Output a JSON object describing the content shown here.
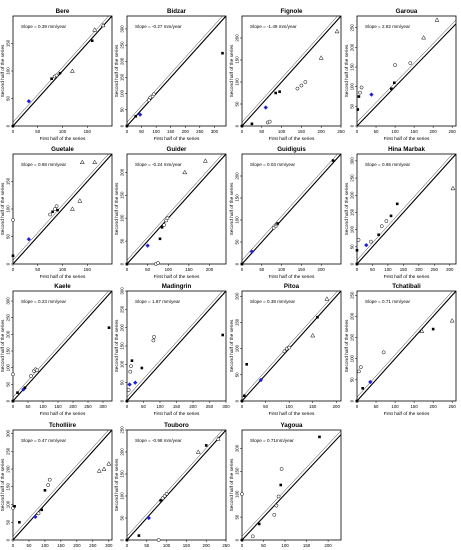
{
  "figure": {
    "xlabel": "First half of the series",
    "ylabel": "Second half of the series"
  },
  "chart_data": [
    {
      "type": "scatter",
      "title": "Bere",
      "annotation": "Slope = 0.39 mm/year",
      "xlim": [
        0,
        200
      ],
      "ylim": [
        0,
        200
      ],
      "xticks": [
        0,
        50,
        100,
        150
      ],
      "yticks": [
        0,
        50,
        100,
        150
      ],
      "points": [
        {
          "x": 0,
          "y": 0,
          "m": "filled"
        },
        {
          "x": 32,
          "y": 45,
          "m": "blue"
        },
        {
          "x": 78,
          "y": 86,
          "m": "filled"
        },
        {
          "x": 84,
          "y": 90,
          "m": "open"
        },
        {
          "x": 88,
          "y": 92,
          "m": "open"
        },
        {
          "x": 95,
          "y": 96,
          "m": "filled"
        },
        {
          "x": 120,
          "y": 100,
          "m": "triangle"
        },
        {
          "x": 160,
          "y": 155,
          "m": "filled"
        },
        {
          "x": 165,
          "y": 175,
          "m": "triangle"
        },
        {
          "x": 182,
          "y": 183,
          "m": "triangle"
        }
      ]
    },
    {
      "type": "scatter",
      "title": "Bidzar",
      "annotation": "Slope = -0.27 mm/year",
      "xlim": [
        0,
        340
      ],
      "ylim": [
        0,
        340
      ],
      "xticks": [
        0,
        50,
        100,
        150,
        200,
        250,
        300
      ],
      "yticks": [
        0,
        50,
        100,
        150,
        200,
        250,
        300
      ],
      "points": [
        {
          "x": 0,
          "y": 0,
          "m": "filled"
        },
        {
          "x": 30,
          "y": 30,
          "m": "filled"
        },
        {
          "x": 45,
          "y": 35,
          "m": "blue"
        },
        {
          "x": 75,
          "y": 80,
          "m": "open"
        },
        {
          "x": 80,
          "y": 88,
          "m": "open"
        },
        {
          "x": 88,
          "y": 92,
          "m": "open"
        },
        {
          "x": 92,
          "y": 98,
          "m": "open"
        },
        {
          "x": 328,
          "y": 225,
          "m": "filled"
        }
      ]
    },
    {
      "type": "scatter",
      "title": "Fignole",
      "annotation": "Slope = -1.49 mm/year",
      "xlim": [
        0,
        250
      ],
      "ylim": [
        0,
        250
      ],
      "xticks": [
        0,
        50,
        100,
        150,
        200,
        250
      ],
      "yticks": [
        0,
        50,
        100,
        150,
        200
      ],
      "points": [
        {
          "x": 0,
          "y": 0,
          "m": "filled"
        },
        {
          "x": 25,
          "y": 5,
          "m": "filled"
        },
        {
          "x": 65,
          "y": 8,
          "m": "open"
        },
        {
          "x": 70,
          "y": 10,
          "m": "open"
        },
        {
          "x": 60,
          "y": 42,
          "m": "blue"
        },
        {
          "x": 85,
          "y": 75,
          "m": "filled"
        },
        {
          "x": 95,
          "y": 78,
          "m": "filled"
        },
        {
          "x": 140,
          "y": 85,
          "m": "open"
        },
        {
          "x": 150,
          "y": 92,
          "m": "open"
        },
        {
          "x": 160,
          "y": 100,
          "m": "open"
        },
        {
          "x": 200,
          "y": 155,
          "m": "triangle"
        },
        {
          "x": 240,
          "y": 215,
          "m": "triangle"
        }
      ]
    },
    {
      "type": "scatter",
      "title": "Garoua",
      "annotation": "Slope = 2.82 mm/year",
      "xlim": [
        0,
        260
      ],
      "ylim": [
        0,
        280
      ],
      "xticks": [
        0,
        50,
        100,
        150,
        200,
        250
      ],
      "yticks": [
        0,
        50,
        100,
        150,
        200,
        250
      ],
      "points": [
        {
          "x": 2,
          "y": 42,
          "m": "filled"
        },
        {
          "x": 5,
          "y": 75,
          "m": "filled"
        },
        {
          "x": 8,
          "y": 85,
          "m": "open"
        },
        {
          "x": 12,
          "y": 98,
          "m": "open"
        },
        {
          "x": 38,
          "y": 80,
          "m": "blue"
        },
        {
          "x": 90,
          "y": 95,
          "m": "filled"
        },
        {
          "x": 98,
          "y": 110,
          "m": "filled"
        },
        {
          "x": 100,
          "y": 155,
          "m": "open"
        },
        {
          "x": 140,
          "y": 160,
          "m": "open"
        },
        {
          "x": 175,
          "y": 225,
          "m": "triangle"
        },
        {
          "x": 210,
          "y": 270,
          "m": "triangle"
        }
      ]
    },
    {
      "type": "scatter",
      "title": "Guetale",
      "annotation": "Slope = 0.68 mm/year",
      "xlim": [
        0,
        200
      ],
      "ylim": [
        0,
        200
      ],
      "xticks": [
        0,
        50,
        100,
        150
      ],
      "yticks": [
        0,
        50,
        100,
        150
      ],
      "points": [
        {
          "x": 0,
          "y": 15,
          "m": "filled"
        },
        {
          "x": 0,
          "y": 80,
          "m": "open"
        },
        {
          "x": 32,
          "y": 45,
          "m": "blue"
        },
        {
          "x": 75,
          "y": 90,
          "m": "open"
        },
        {
          "x": 80,
          "y": 95,
          "m": "filled"
        },
        {
          "x": 85,
          "y": 100,
          "m": "open"
        },
        {
          "x": 88,
          "y": 105,
          "m": "open"
        },
        {
          "x": 90,
          "y": 98,
          "m": "filled"
        },
        {
          "x": 120,
          "y": 100,
          "m": "triangle"
        },
        {
          "x": 135,
          "y": 115,
          "m": "triangle"
        },
        {
          "x": 140,
          "y": 185,
          "m": "triangle"
        },
        {
          "x": 165,
          "y": 185,
          "m": "triangle"
        }
      ]
    },
    {
      "type": "scatter",
      "title": "Guider",
      "annotation": "Slope = -0.24 mm/year",
      "xlim": [
        0,
        240
      ],
      "ylim": [
        0,
        240
      ],
      "xticks": [
        0,
        50,
        100,
        150,
        200
      ],
      "yticks": [
        0,
        50,
        100,
        150,
        200
      ],
      "points": [
        {
          "x": 0,
          "y": 0,
          "m": "filled"
        },
        {
          "x": 50,
          "y": 40,
          "m": "blue"
        },
        {
          "x": 70,
          "y": 0,
          "m": "open"
        },
        {
          "x": 75,
          "y": 2,
          "m": "open"
        },
        {
          "x": 80,
          "y": 55,
          "m": "filled"
        },
        {
          "x": 85,
          "y": 80,
          "m": "filled"
        },
        {
          "x": 90,
          "y": 85,
          "m": "open"
        },
        {
          "x": 95,
          "y": 95,
          "m": "open"
        },
        {
          "x": 98,
          "y": 100,
          "m": "open"
        },
        {
          "x": 140,
          "y": 200,
          "m": "triangle"
        },
        {
          "x": 190,
          "y": 225,
          "m": "triangle"
        }
      ]
    },
    {
      "type": "scatter",
      "title": "Guidiguis",
      "annotation": "Slope = 0.03 mm/year",
      "xlim": [
        0,
        250
      ],
      "ylim": [
        0,
        250
      ],
      "xticks": [
        0,
        50,
        100,
        150,
        200
      ],
      "yticks": [
        0,
        50,
        100,
        150,
        200
      ],
      "points": [
        {
          "x": 0,
          "y": 0,
          "m": "filled"
        },
        {
          "x": 25,
          "y": 28,
          "m": "blue"
        },
        {
          "x": 80,
          "y": 82,
          "m": "open"
        },
        {
          "x": 85,
          "y": 86,
          "m": "open"
        },
        {
          "x": 88,
          "y": 90,
          "m": "open"
        },
        {
          "x": 90,
          "y": 92,
          "m": "filled"
        },
        {
          "x": 230,
          "y": 235,
          "m": "filled"
        }
      ]
    },
    {
      "type": "scatter",
      "title": "Hina Marbak",
      "annotation": "Slope = 0.65 mm/year",
      "xlim": [
        0,
        320
      ],
      "ylim": [
        0,
        320
      ],
      "xticks": [
        0,
        50,
        100,
        150,
        200,
        250,
        300
      ],
      "yticks": [
        0,
        50,
        100,
        150,
        200,
        250,
        300
      ],
      "points": [
        {
          "x": 0,
          "y": 0,
          "m": "filled"
        },
        {
          "x": 0,
          "y": 40,
          "m": "filled"
        },
        {
          "x": 5,
          "y": 70,
          "m": "open"
        },
        {
          "x": 30,
          "y": 55,
          "m": "blue"
        },
        {
          "x": 45,
          "y": 65,
          "m": "open"
        },
        {
          "x": 70,
          "y": 85,
          "m": "filled"
        },
        {
          "x": 80,
          "y": 110,
          "m": "open"
        },
        {
          "x": 95,
          "y": 125,
          "m": "open"
        },
        {
          "x": 110,
          "y": 140,
          "m": "filled"
        },
        {
          "x": 130,
          "y": 175,
          "m": "filled"
        },
        {
          "x": 310,
          "y": 220,
          "m": "triangle"
        }
      ]
    },
    {
      "type": "scatter",
      "title": "Kaele",
      "annotation": "Slope = 0.23 mm/year",
      "xlim": [
        0,
        330
      ],
      "ylim": [
        0,
        330
      ],
      "xticks": [
        0,
        50,
        100,
        150,
        200,
        250,
        300
      ],
      "yticks": [
        0,
        50,
        100,
        150,
        200,
        250,
        300
      ],
      "points": [
        {
          "x": 0,
          "y": 0,
          "m": "filled"
        },
        {
          "x": 0,
          "y": 80,
          "m": "open"
        },
        {
          "x": 15,
          "y": 25,
          "m": "filled"
        },
        {
          "x": 35,
          "y": 35,
          "m": "blue"
        },
        {
          "x": 40,
          "y": 40,
          "m": "filled"
        },
        {
          "x": 60,
          "y": 75,
          "m": "open"
        },
        {
          "x": 70,
          "y": 90,
          "m": "open"
        },
        {
          "x": 75,
          "y": 95,
          "m": "open"
        },
        {
          "x": 80,
          "y": 92,
          "m": "open"
        },
        {
          "x": 320,
          "y": 220,
          "m": "filled"
        }
      ]
    },
    {
      "type": "scatter",
      "title": "Madingrin",
      "annotation": "Slope = 1.87 mm/year",
      "xlim": [
        0,
        300
      ],
      "ylim": [
        0,
        300
      ],
      "xticks": [
        0,
        50,
        100,
        150,
        200,
        250,
        300
      ],
      "yticks": [
        0,
        50,
        100,
        150,
        200,
        250,
        300
      ],
      "points": [
        {
          "x": 0,
          "y": 0,
          "m": "filled"
        },
        {
          "x": 5,
          "y": 30,
          "m": "open"
        },
        {
          "x": 8,
          "y": 45,
          "m": "blue"
        },
        {
          "x": 10,
          "y": 80,
          "m": "open"
        },
        {
          "x": 12,
          "y": 95,
          "m": "open"
        },
        {
          "x": 15,
          "y": 110,
          "m": "filled"
        },
        {
          "x": 25,
          "y": 50,
          "m": "blue"
        },
        {
          "x": 45,
          "y": 90,
          "m": "filled"
        },
        {
          "x": 80,
          "y": 165,
          "m": "open"
        },
        {
          "x": 82,
          "y": 175,
          "m": "open"
        },
        {
          "x": 290,
          "y": 180,
          "m": "filled"
        }
      ]
    },
    {
      "type": "scatter",
      "title": "Pitoa",
      "annotation": "Slope = 0.38 mm/year",
      "xlim": [
        0,
        210
      ],
      "ylim": [
        0,
        210
      ],
      "xticks": [
        0,
        50,
        100,
        150,
        200
      ],
      "yticks": [
        0,
        50,
        100,
        150,
        200
      ],
      "points": [
        {
          "x": 0,
          "y": 0,
          "m": "filled"
        },
        {
          "x": 5,
          "y": 10,
          "m": "filled"
        },
        {
          "x": 10,
          "y": 70,
          "m": "filled"
        },
        {
          "x": 40,
          "y": 40,
          "m": "blue"
        },
        {
          "x": 90,
          "y": 95,
          "m": "open"
        },
        {
          "x": 95,
          "y": 100,
          "m": "open"
        },
        {
          "x": 100,
          "y": 102,
          "m": "open"
        },
        {
          "x": 150,
          "y": 125,
          "m": "triangle"
        },
        {
          "x": 160,
          "y": 160,
          "m": "filled"
        },
        {
          "x": 180,
          "y": 195,
          "m": "triangle"
        }
      ]
    },
    {
      "type": "scatter",
      "title": "Tchatibali",
      "annotation": "Slope = 0.71 mm/year",
      "xlim": [
        0,
        260
      ],
      "ylim": [
        0,
        260
      ],
      "xticks": [
        0,
        50,
        100,
        150,
        200,
        250
      ],
      "yticks": [
        0,
        50,
        100,
        150,
        200,
        250
      ],
      "points": [
        {
          "x": 0,
          "y": 0,
          "m": "filled"
        },
        {
          "x": 15,
          "y": 30,
          "m": "filled"
        },
        {
          "x": 35,
          "y": 45,
          "m": "blue"
        },
        {
          "x": 5,
          "y": 70,
          "m": "open"
        },
        {
          "x": 10,
          "y": 80,
          "m": "open"
        },
        {
          "x": 70,
          "y": 115,
          "m": "open"
        },
        {
          "x": 170,
          "y": 165,
          "m": "triangle"
        },
        {
          "x": 200,
          "y": 170,
          "m": "filled"
        },
        {
          "x": 250,
          "y": 190,
          "m": "triangle"
        }
      ]
    },
    {
      "type": "scatter",
      "title": "Tcholliire",
      "annotation": "Slope = 0.47 mm/year",
      "xlim": [
        0,
        310
      ],
      "ylim": [
        0,
        310
      ],
      "xticks": [
        0,
        50,
        100,
        150,
        200,
        250,
        300
      ],
      "yticks": [
        0,
        50,
        100,
        150,
        200,
        250,
        300
      ],
      "points": [
        {
          "x": 0,
          "y": 90,
          "m": "open"
        },
        {
          "x": 5,
          "y": 95,
          "m": "filled"
        },
        {
          "x": 20,
          "y": 50,
          "m": "filled"
        },
        {
          "x": 70,
          "y": 65,
          "m": "blue"
        },
        {
          "x": 80,
          "y": 75,
          "m": "open"
        },
        {
          "x": 90,
          "y": 85,
          "m": "filled"
        },
        {
          "x": 100,
          "y": 140,
          "m": "filled"
        },
        {
          "x": 110,
          "y": 155,
          "m": "open"
        },
        {
          "x": 115,
          "y": 170,
          "m": "open"
        },
        {
          "x": 270,
          "y": 195,
          "m": "triangle"
        },
        {
          "x": 285,
          "y": 200,
          "m": "triangle"
        },
        {
          "x": 300,
          "y": 215,
          "m": "triangle"
        }
      ]
    },
    {
      "type": "scatter",
      "title": "Touboro",
      "annotation": "Slope = -0.98 mm/year",
      "xlim": [
        0,
        250
      ],
      "ylim": [
        0,
        250
      ],
      "xticks": [
        0,
        50,
        100,
        150,
        200,
        250
      ],
      "yticks": [
        0,
        50,
        100,
        150,
        200,
        250
      ],
      "points": [
        {
          "x": 0,
          "y": 0,
          "m": "filled"
        },
        {
          "x": 30,
          "y": 10,
          "m": "filled"
        },
        {
          "x": 55,
          "y": 50,
          "m": "blue"
        },
        {
          "x": 80,
          "y": 0,
          "m": "open"
        },
        {
          "x": 85,
          "y": 90,
          "m": "filled"
        },
        {
          "x": 90,
          "y": 95,
          "m": "open"
        },
        {
          "x": 95,
          "y": 100,
          "m": "open"
        },
        {
          "x": 100,
          "y": 105,
          "m": "open"
        },
        {
          "x": 180,
          "y": 200,
          "m": "triangle"
        },
        {
          "x": 200,
          "y": 215,
          "m": "filled"
        },
        {
          "x": 230,
          "y": 230,
          "m": "triangle"
        }
      ]
    },
    {
      "type": "scatter",
      "title": "Yagoua",
      "annotation": "Slope = 0.71mm/year",
      "xlim": [
        0,
        230
      ],
      "ylim": [
        0,
        240
      ],
      "xticks": [
        0,
        50,
        100,
        150,
        200
      ],
      "yticks": [
        0,
        50,
        100,
        150,
        200
      ],
      "points": [
        {
          "x": 0,
          "y": 0,
          "m": "filled"
        },
        {
          "x": 0,
          "y": 100,
          "m": "open"
        },
        {
          "x": 25,
          "y": 8,
          "m": "open"
        },
        {
          "x": 40,
          "y": 35,
          "m": "filled"
        },
        {
          "x": 75,
          "y": 55,
          "m": "open"
        },
        {
          "x": 80,
          "y": 75,
          "m": "open"
        },
        {
          "x": 85,
          "y": 95,
          "m": "open"
        },
        {
          "x": 90,
          "y": 120,
          "m": "filled"
        },
        {
          "x": 92,
          "y": 155,
          "m": "open"
        },
        {
          "x": 180,
          "y": 225,
          "m": "filled"
        }
      ]
    }
  ]
}
